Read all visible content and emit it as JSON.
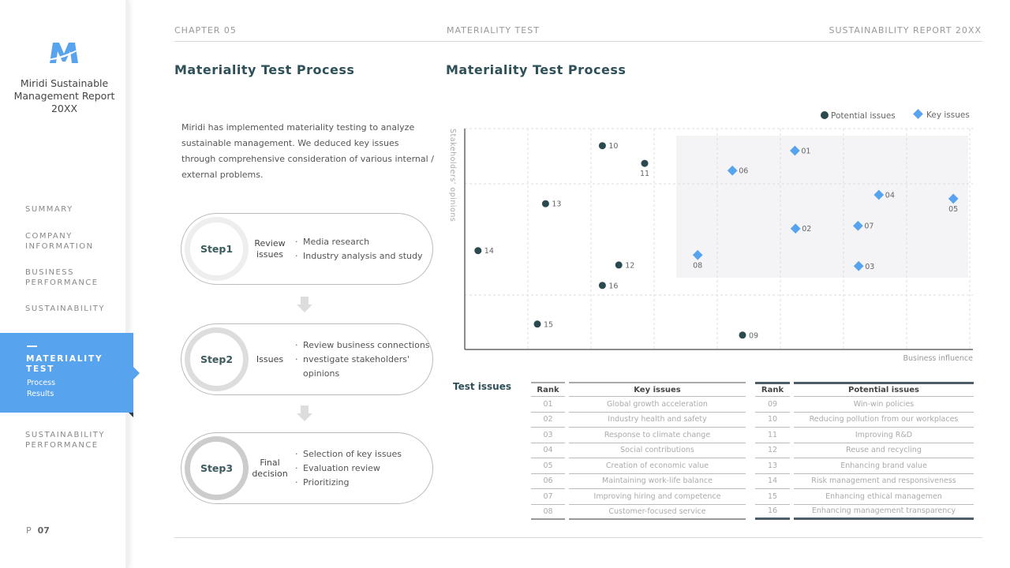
{
  "sidebar": {
    "brand": "Miridi Sustainable Management Report 20XX",
    "logo_text": "M",
    "items": [
      {
        "label": "SUMMARY"
      },
      {
        "label": "COMPANY INFORMATION"
      },
      {
        "label": "BUSINESS PERFORMANCE"
      },
      {
        "label": "SUSTAINABILITY"
      },
      {
        "label": "MATERIALITY TEST",
        "active": true,
        "sub": [
          "Process",
          "Results"
        ]
      },
      {
        "label": "SUSTAINABILITY PERFORMANCE"
      }
    ],
    "page_prefix": "P",
    "page_number": "07",
    "accent": "#58a3ee"
  },
  "header": {
    "chapter": "CHAPTER 05",
    "section": "MATERIALITY TEST",
    "report": "SUSTAINABILITY REPORT 20XX"
  },
  "left": {
    "title": "Materiality Test Process",
    "intro": "Miridi has implemented materiality testing to analyze sustainable management. We deduced key issues through comprehensive consideration of various internal / external problems.",
    "steps": [
      {
        "step": "Step1",
        "title": "Review issues",
        "items": [
          "Media research",
          "Industry analysis and study"
        ]
      },
      {
        "step": "Step2",
        "title": "Issues",
        "items": [
          "Review business connections",
          "nvestigate stakeholders' opinions"
        ]
      },
      {
        "step": "Step3",
        "title": "Final decision",
        "items": [
          "Selection of key issues",
          "Evaluation review",
          "Prioritizing"
        ]
      }
    ]
  },
  "right": {
    "title": "Materiality Test Process",
    "table_label": "Test issues"
  },
  "chart_data": {
    "type": "scatter",
    "xlabel": "Business influence",
    "ylabel": "Stakeholders' opinions",
    "xlim": [
      0,
      8
    ],
    "ylim": [
      0,
      4
    ],
    "grid": true,
    "legend": "top-right",
    "series": [
      {
        "name": "Potential issues",
        "marker": "circle",
        "color": "#2b4a50",
        "points": [
          {
            "label": "09",
            "x": 4.4,
            "y": 0.26,
            "pos": "right"
          },
          {
            "label": "10",
            "x": 2.18,
            "y": 3.69,
            "pos": "right"
          },
          {
            "label": "11",
            "x": 2.85,
            "y": 3.37,
            "pos": "below"
          },
          {
            "label": "12",
            "x": 2.44,
            "y": 1.53,
            "pos": "right"
          },
          {
            "label": "13",
            "x": 1.28,
            "y": 2.64,
            "pos": "right"
          },
          {
            "label": "14",
            "x": 0.21,
            "y": 1.79,
            "pos": "right"
          },
          {
            "label": "15",
            "x": 1.15,
            "y": 0.46,
            "pos": "right"
          },
          {
            "label": "16",
            "x": 2.18,
            "y": 1.16,
            "pos": "right"
          }
        ]
      },
      {
        "name": "Key issues",
        "marker": "diamond",
        "color": "#58a3ee",
        "points": [
          {
            "label": "01",
            "x": 5.23,
            "y": 3.6,
            "pos": "right"
          },
          {
            "label": "02",
            "x": 5.24,
            "y": 2.19,
            "pos": "right"
          },
          {
            "label": "03",
            "x": 6.24,
            "y": 1.51,
            "pos": "right"
          },
          {
            "label": "04",
            "x": 6.56,
            "y": 2.8,
            "pos": "right"
          },
          {
            "label": "05",
            "x": 7.74,
            "y": 2.73,
            "pos": "below"
          },
          {
            "label": "06",
            "x": 4.24,
            "y": 3.24,
            "pos": "right"
          },
          {
            "label": "07",
            "x": 6.23,
            "y": 2.24,
            "pos": "right"
          },
          {
            "label": "08",
            "x": 3.69,
            "y": 1.71,
            "pos": "below"
          }
        ]
      }
    ]
  },
  "key_table": {
    "headers": [
      "Rank",
      "Key issues"
    ],
    "rows": [
      [
        "01",
        "Global growth acceleration"
      ],
      [
        "02",
        "Industry health and safety"
      ],
      [
        "03",
        "Response to climate change"
      ],
      [
        "04",
        "Social contributions"
      ],
      [
        "05",
        "Creation of economic value"
      ],
      [
        "06",
        "Maintaining work-life balance"
      ],
      [
        "07",
        "Improving hiring and competence"
      ],
      [
        "08",
        "Customer-focused service"
      ]
    ]
  },
  "potential_table": {
    "headers": [
      "Rank",
      "Potential issues"
    ],
    "rows": [
      [
        "09",
        "Win-win policies"
      ],
      [
        "10",
        "Reducing pollution from our workplaces"
      ],
      [
        "11",
        "Improving R&D"
      ],
      [
        "12",
        "Reuse and recycling"
      ],
      [
        "13",
        "Enhancing brand value"
      ],
      [
        "14",
        "Risk management and responsiveness"
      ],
      [
        "15",
        "Enhancing ethical managemen"
      ],
      [
        "16",
        "Enhancing management transparency"
      ]
    ]
  }
}
